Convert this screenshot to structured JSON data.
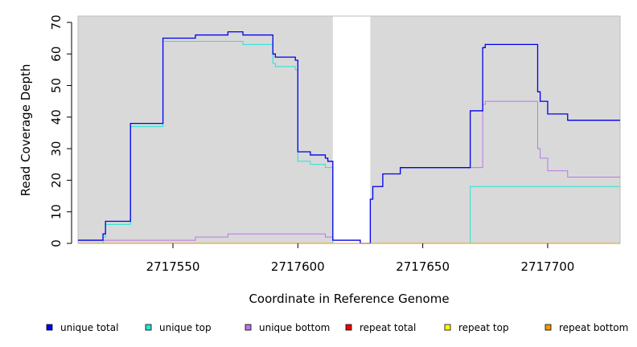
{
  "chart_data": {
    "type": "line",
    "xlabel": "Coordinate in Reference Genome",
    "ylabel": "Read Coverage Depth",
    "xlim": [
      2717512,
      2717729
    ],
    "ylim": [
      0,
      72
    ],
    "x_ticks": [
      2717550,
      2717600,
      2717650,
      2717700
    ],
    "x_tick_labels": [
      "2717550",
      "2717600",
      "2717650",
      "2717700"
    ],
    "y_ticks": [
      0,
      10,
      20,
      30,
      40,
      50,
      60,
      70
    ],
    "y_tick_labels": [
      "0",
      "10",
      "20",
      "30",
      "40",
      "50",
      "60",
      "70"
    ],
    "grid": false,
    "legend_position": "bottom",
    "background_shading": [
      {
        "x_start": 2717512,
        "x_end": 2717614,
        "color": "#d9d9d9"
      },
      {
        "x_start": 2717629,
        "x_end": 2717729,
        "color": "#d9d9d9"
      }
    ],
    "series": [
      {
        "name": "unique total",
        "color": "#0000ee",
        "points": [
          [
            2717512,
            1
          ],
          [
            2717522,
            1
          ],
          [
            2717522,
            3
          ],
          [
            2717523,
            3
          ],
          [
            2717523,
            7
          ],
          [
            2717533,
            7
          ],
          [
            2717533,
            38
          ],
          [
            2717546,
            38
          ],
          [
            2717546,
            65
          ],
          [
            2717559,
            65
          ],
          [
            2717559,
            66
          ],
          [
            2717572,
            66
          ],
          [
            2717572,
            67
          ],
          [
            2717578,
            67
          ],
          [
            2717578,
            66
          ],
          [
            2717590,
            66
          ],
          [
            2717590,
            60
          ],
          [
            2717591,
            60
          ],
          [
            2717591,
            59
          ],
          [
            2717599,
            59
          ],
          [
            2717599,
            58
          ],
          [
            2717600,
            58
          ],
          [
            2717600,
            29
          ],
          [
            2717605,
            29
          ],
          [
            2717605,
            28
          ],
          [
            2717611,
            28
          ],
          [
            2717611,
            27
          ],
          [
            2717612,
            27
          ],
          [
            2717612,
            26
          ],
          [
            2717614,
            26
          ],
          [
            2717614,
            1
          ],
          [
            2717625,
            1
          ],
          [
            2717625,
            0
          ],
          [
            2717629,
            0
          ],
          [
            2717629,
            14
          ],
          [
            2717630,
            14
          ],
          [
            2717630,
            18
          ],
          [
            2717634,
            18
          ],
          [
            2717634,
            22
          ],
          [
            2717641,
            22
          ],
          [
            2717641,
            24
          ],
          [
            2717669,
            24
          ],
          [
            2717669,
            42
          ],
          [
            2717674,
            42
          ],
          [
            2717674,
            62
          ],
          [
            2717675,
            62
          ],
          [
            2717675,
            63
          ],
          [
            2717696,
            63
          ],
          [
            2717696,
            48
          ],
          [
            2717697,
            48
          ],
          [
            2717697,
            45
          ],
          [
            2717700,
            45
          ],
          [
            2717700,
            41
          ],
          [
            2717708,
            41
          ],
          [
            2717708,
            39
          ],
          [
            2717729,
            39
          ]
        ]
      },
      {
        "name": "unique top",
        "color": "#22e5d6",
        "points": [
          [
            2717512,
            0
          ],
          [
            2717522,
            0
          ],
          [
            2717522,
            2
          ],
          [
            2717523,
            2
          ],
          [
            2717523,
            6
          ],
          [
            2717533,
            6
          ],
          [
            2717533,
            37
          ],
          [
            2717546,
            37
          ],
          [
            2717546,
            64
          ],
          [
            2717578,
            64
          ],
          [
            2717578,
            63
          ],
          [
            2717590,
            63
          ],
          [
            2717590,
            57
          ],
          [
            2717591,
            57
          ],
          [
            2717591,
            56
          ],
          [
            2717599,
            56
          ],
          [
            2717599,
            55
          ],
          [
            2717600,
            55
          ],
          [
            2717600,
            26
          ],
          [
            2717605,
            26
          ],
          [
            2717605,
            25
          ],
          [
            2717611,
            25
          ],
          [
            2717611,
            24
          ],
          [
            2717614,
            24
          ],
          [
            2717614,
            0
          ],
          [
            2717669,
            0
          ],
          [
            2717669,
            18
          ],
          [
            2717729,
            18
          ]
        ]
      },
      {
        "name": "unique bottom",
        "color": "#b878e8",
        "points": [
          [
            2717512,
            1
          ],
          [
            2717559,
            1
          ],
          [
            2717559,
            2
          ],
          [
            2717572,
            2
          ],
          [
            2717572,
            3
          ],
          [
            2717611,
            3
          ],
          [
            2717611,
            2
          ],
          [
            2717614,
            2
          ],
          [
            2717614,
            1
          ],
          [
            2717625,
            1
          ],
          [
            2717625,
            0
          ],
          [
            2717629,
            0
          ],
          [
            2717629,
            14
          ],
          [
            2717630,
            14
          ],
          [
            2717630,
            18
          ],
          [
            2717634,
            18
          ],
          [
            2717634,
            22
          ],
          [
            2717641,
            22
          ],
          [
            2717641,
            24
          ],
          [
            2717674,
            24
          ],
          [
            2717674,
            44
          ],
          [
            2717675,
            44
          ],
          [
            2717675,
            45
          ],
          [
            2717696,
            45
          ],
          [
            2717696,
            30
          ],
          [
            2717697,
            30
          ],
          [
            2717697,
            27
          ],
          [
            2717700,
            27
          ],
          [
            2717700,
            23
          ],
          [
            2717708,
            23
          ],
          [
            2717708,
            21
          ],
          [
            2717729,
            21
          ]
        ]
      },
      {
        "name": "repeat total",
        "color": "#ee0000",
        "points": [
          [
            2717512,
            0
          ],
          [
            2717729,
            0
          ]
        ]
      },
      {
        "name": "repeat top",
        "color": "#ffff00",
        "points": [
          [
            2717512,
            0
          ],
          [
            2717729,
            0
          ]
        ]
      },
      {
        "name": "repeat bottom",
        "color": "#ee9a00",
        "points": [
          [
            2717512,
            0
          ],
          [
            2717729,
            0
          ]
        ]
      }
    ]
  }
}
